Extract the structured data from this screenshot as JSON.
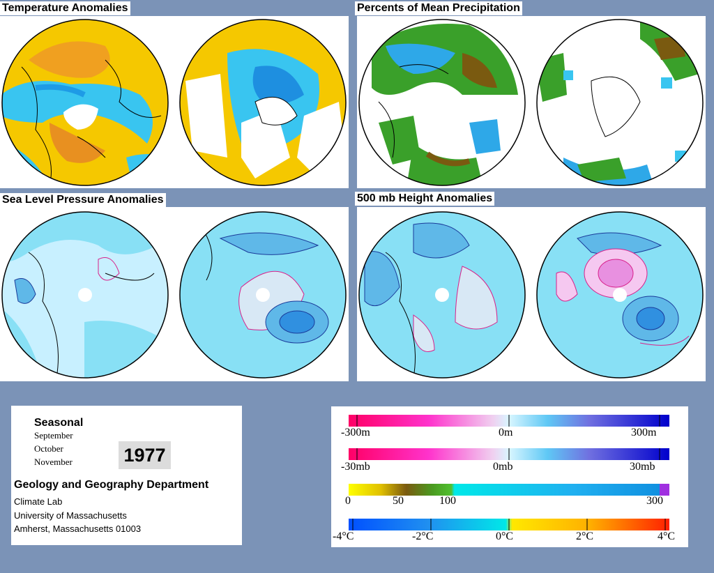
{
  "panels": {
    "temperature": {
      "title": "Temperature Anomalies"
    },
    "precipitation": {
      "title": "Percents of Mean Precipitation"
    },
    "slp": {
      "title": "Sea Level Pressure Anomalies"
    },
    "height500": {
      "title": "500 mb Height Anomalies"
    }
  },
  "info": {
    "season": "Seasonal",
    "months": [
      "September",
      "October",
      "November"
    ],
    "year": "1977",
    "department": "Geology and Geography Department",
    "address": [
      "Climate Lab",
      "University of Massachusetts",
      "Amherst, Massachusetts 01003"
    ]
  },
  "legend": {
    "height": {
      "labels": [
        "-300m",
        "0m",
        "300m"
      ]
    },
    "pressure": {
      "labels": [
        "-30mb",
        "0mb",
        "30mb"
      ]
    },
    "precip": {
      "labels": [
        "0",
        "50",
        "100",
        "300"
      ]
    },
    "temp": {
      "labels": [
        "-4°C",
        "-2°C",
        "0°C",
        "2°C",
        "4°C"
      ]
    }
  },
  "colors": {
    "background": "#7b93b7",
    "negative_anomaly": "#ff0099",
    "positive_anomaly": "#0000cc",
    "neutral": "#c8f0ff",
    "warm": "#f5c800",
    "cool": "#1e9be6",
    "dry": "#7a5a10",
    "wet": "#3a9a2a"
  }
}
